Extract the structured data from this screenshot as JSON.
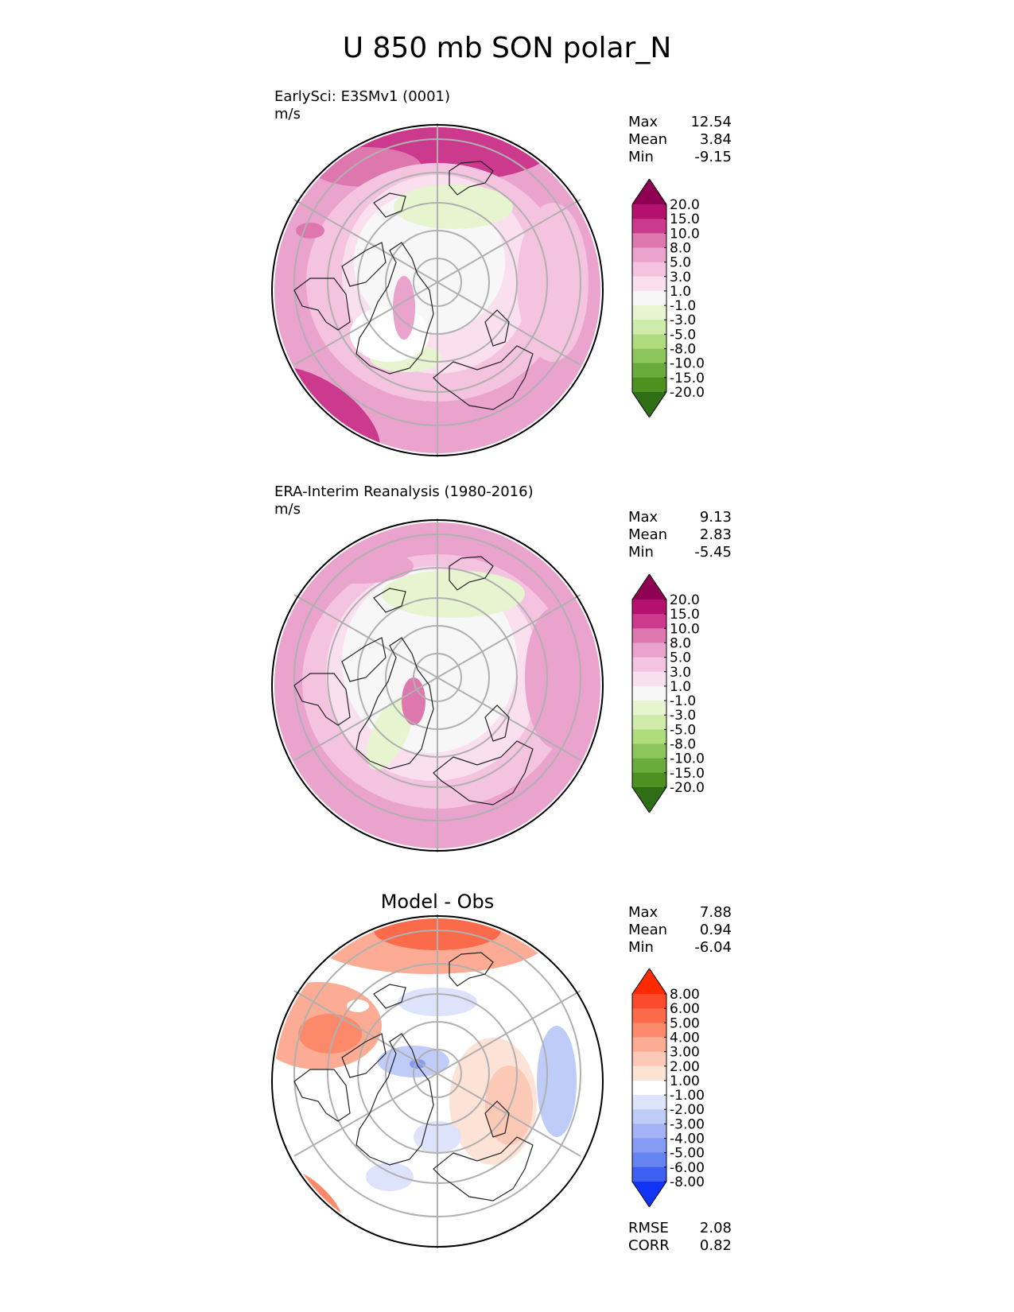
{
  "figure": {
    "title": "U 850 mb SON polar_N"
  },
  "chart_data": [
    {
      "type": "heatmap",
      "projection": "north polar stereographic",
      "name": "EarlySci: E3SMv1 (0001)",
      "units": "m/s",
      "stats": [
        {
          "label": "Max",
          "value": "12.54"
        },
        {
          "label": "Mean",
          "value": "3.84"
        },
        {
          "label": "Min",
          "value": "-9.15"
        }
      ],
      "colorbar": {
        "levels": [
          "20.0",
          "15.0",
          "10.0",
          "8.0",
          "5.0",
          "3.0",
          "1.0",
          "-1.0",
          "-3.0",
          "-5.0",
          "-8.0",
          "-10.0",
          "-15.0",
          "-20.0"
        ],
        "colors": [
          "#8e0152",
          "#b4106e",
          "#cc3a8e",
          "#de77ae",
          "#eaa3cc",
          "#f4c3e0",
          "#fae0ef",
          "#f7f7f7",
          "#e6f5d0",
          "#cfebac",
          "#b0dc80",
          "#8cc55c",
          "#6aab3e",
          "#4d9221",
          "#2e6e17"
        ]
      }
    },
    {
      "type": "heatmap",
      "projection": "north polar stereographic",
      "name": "ERA-Interim Reanalysis (1980-2016)",
      "units": "m/s",
      "stats": [
        {
          "label": "Max",
          "value": "9.13"
        },
        {
          "label": "Mean",
          "value": "2.83"
        },
        {
          "label": "Min",
          "value": "-5.45"
        }
      ],
      "colorbar": {
        "levels": [
          "20.0",
          "15.0",
          "10.0",
          "8.0",
          "5.0",
          "3.0",
          "1.0",
          "-1.0",
          "-3.0",
          "-5.0",
          "-8.0",
          "-10.0",
          "-15.0",
          "-20.0"
        ],
        "colors": [
          "#8e0152",
          "#b4106e",
          "#cc3a8e",
          "#de77ae",
          "#eaa3cc",
          "#f4c3e0",
          "#fae0ef",
          "#f7f7f7",
          "#e6f5d0",
          "#cfebac",
          "#b0dc80",
          "#8cc55c",
          "#6aab3e",
          "#4d9221",
          "#2e6e17"
        ]
      }
    },
    {
      "type": "heatmap",
      "projection": "north polar stereographic",
      "title": "Model - Obs",
      "stats": [
        {
          "label": "Max",
          "value": "7.88"
        },
        {
          "label": "Mean",
          "value": "0.94"
        },
        {
          "label": "Min",
          "value": "-6.04"
        }
      ],
      "metrics": [
        {
          "label": "RMSE",
          "value": "2.08"
        },
        {
          "label": "CORR",
          "value": "0.82"
        }
      ],
      "colorbar": {
        "levels": [
          "8.00",
          "6.00",
          "5.00",
          "4.00",
          "3.00",
          "2.00",
          "1.00",
          "-1.00",
          "-2.00",
          "-3.00",
          "-4.00",
          "-5.00",
          "-6.00",
          "-8.00"
        ],
        "colors": [
          "#ff2a00",
          "#fc4a2c",
          "#fb6a4a",
          "#fc8a6a",
          "#fcac94",
          "#fcc9b6",
          "#fde2d6",
          "#ffffff",
          "#dde3fb",
          "#c0ccf8",
          "#a3b3f6",
          "#859bf4",
          "#6683f2",
          "#3f5ef2",
          "#1033f5"
        ]
      }
    }
  ]
}
